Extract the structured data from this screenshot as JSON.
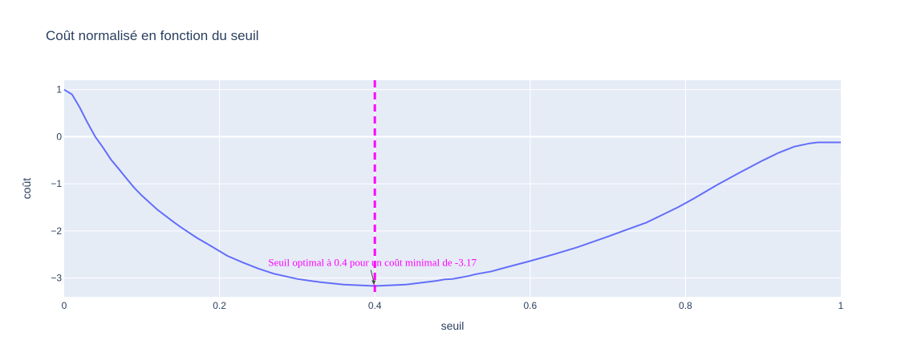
{
  "colors": {
    "plot_bg": "#e5ecf6",
    "grid": "#ffffff",
    "line": "#636efa",
    "threshold": "#ff00ff",
    "annotation": "#ff00ff",
    "text": "#2a3f5f"
  },
  "chart_data": {
    "type": "line",
    "title": "Coût normalisé en fonction du seuil",
    "xlabel": "seuil",
    "ylabel": "coût",
    "xlim": [
      0,
      1
    ],
    "ylim": [
      -3.4,
      1.2
    ],
    "x_ticks": [
      0,
      0.2,
      0.4,
      0.6,
      0.8,
      1
    ],
    "x_tick_labels": [
      "0",
      "0.2",
      "0.4",
      "0.6",
      "0.8",
      "1"
    ],
    "y_ticks": [
      1,
      0,
      -1,
      -2,
      -3
    ],
    "y_tick_labels": [
      "1",
      "0",
      "−1",
      "−2",
      "−3"
    ],
    "grid": true,
    "series": [
      {
        "x": [
          0,
          0.01,
          0.02,
          0.03,
          0.04,
          0.05,
          0.06,
          0.07,
          0.08,
          0.09,
          0.1,
          0.12,
          0.14,
          0.15,
          0.17,
          0.19,
          0.21,
          0.23,
          0.25,
          0.27,
          0.3,
          0.33,
          0.36,
          0.4,
          0.44,
          0.46,
          0.48,
          0.49,
          0.5,
          0.52,
          0.53,
          0.55,
          0.57,
          0.6,
          0.63,
          0.66,
          0.7,
          0.72,
          0.75,
          0.77,
          0.79,
          0.81,
          0.84,
          0.87,
          0.9,
          0.92,
          0.94,
          0.96,
          0.97,
          0.98,
          1.0
        ],
        "y": [
          1.0,
          0.9,
          0.62,
          0.3,
          0.0,
          -0.23,
          -0.48,
          -0.68,
          -0.88,
          -1.08,
          -1.25,
          -1.55,
          -1.8,
          -1.92,
          -2.14,
          -2.33,
          -2.53,
          -2.67,
          -2.8,
          -2.91,
          -3.02,
          -3.09,
          -3.14,
          -3.17,
          -3.14,
          -3.1,
          -3.06,
          -3.03,
          -3.02,
          -2.96,
          -2.92,
          -2.86,
          -2.77,
          -2.64,
          -2.5,
          -2.35,
          -2.12,
          -2.0,
          -1.82,
          -1.66,
          -1.5,
          -1.32,
          -1.03,
          -0.76,
          -0.5,
          -0.34,
          -0.21,
          -0.14,
          -0.12,
          -0.12,
          -0.12
        ]
      }
    ],
    "threshold": {
      "x": 0.4,
      "style": "dashed"
    },
    "annotation": {
      "text": "Seuil optimal à 0.4 pour un coût minimal de -3.17",
      "x": 0.4,
      "y": -3.17
    }
  }
}
